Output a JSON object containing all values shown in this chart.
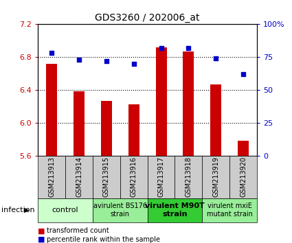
{
  "title": "GDS3260 / 202006_at",
  "samples": [
    "GSM213913",
    "GSM213914",
    "GSM213915",
    "GSM213916",
    "GSM213917",
    "GSM213918",
    "GSM213919",
    "GSM213920"
  ],
  "bar_values": [
    6.72,
    6.38,
    6.27,
    6.22,
    6.92,
    6.87,
    6.47,
    5.78
  ],
  "scatter_values": [
    78,
    73,
    72,
    70,
    82,
    82,
    74,
    62
  ],
  "ylim_left": [
    5.6,
    7.2
  ],
  "ylim_right": [
    0,
    100
  ],
  "yticks_left": [
    5.6,
    6.0,
    6.4,
    6.8,
    7.2
  ],
  "yticks_right": [
    0,
    25,
    50,
    75,
    100
  ],
  "bar_color": "#cc0000",
  "scatter_color": "#0000cc",
  "bar_bottom": 5.6,
  "groups": [
    {
      "label": "control",
      "start": 0,
      "end": 2,
      "color": "#ccffcc",
      "fontsize": 8,
      "bold": false
    },
    {
      "label": "avirulent BS176\nstrain",
      "start": 2,
      "end": 4,
      "color": "#99ee99",
      "fontsize": 7,
      "bold": false
    },
    {
      "label": "virulent M90T\nstrain",
      "start": 4,
      "end": 6,
      "color": "#33cc33",
      "fontsize": 8,
      "bold": true
    },
    {
      "label": "virulent mxiE\nmutant strain",
      "start": 6,
      "end": 8,
      "color": "#99ee99",
      "fontsize": 7,
      "bold": false
    }
  ],
  "infection_label": "infection",
  "legend_items": [
    {
      "color": "#cc0000",
      "label": "transformed count"
    },
    {
      "color": "#0000cc",
      "label": "percentile rank within the sample"
    }
  ],
  "left_tick_color": "#cc0000",
  "right_tick_color": "#0000cc",
  "xtick_label_fontsize": 7,
  "bar_width": 0.4
}
